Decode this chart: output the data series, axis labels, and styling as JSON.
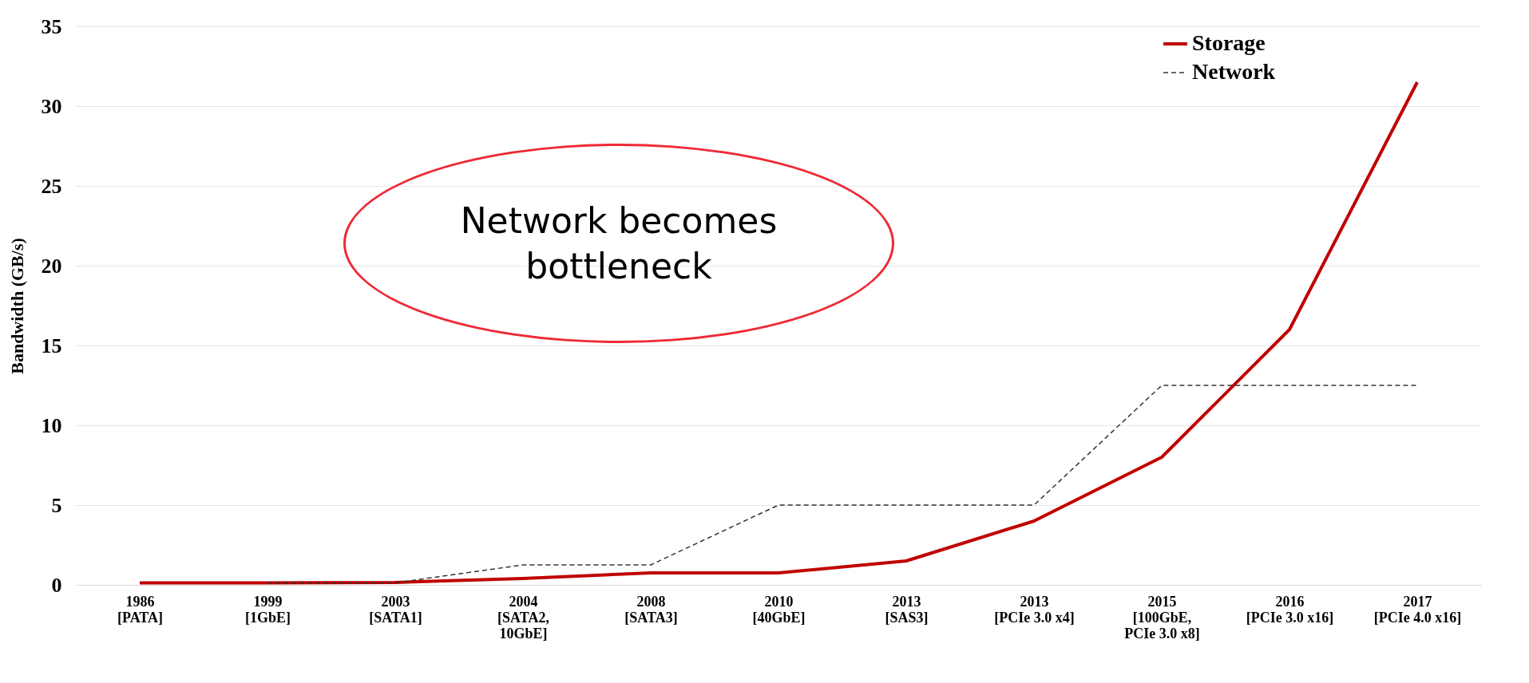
{
  "chart_data": {
    "type": "line",
    "ylabel": "Bandwidth (GB/s)",
    "categories": [
      "1986\n[PATA]",
      "1999\n[1GbE]",
      "2003\n[SATA1]",
      "2004\n[SATA2,\n10GbE]",
      "2008\n[SATA3]",
      "2010\n[40GbE]",
      "2013\n[SAS3]",
      "2013\n[PCIe 3.0 x4]",
      "2015\n[100GbE,\nPCIe 3.0 x8]",
      "2016\n[PCIe 3.0 x16]",
      "2017\n[PCIe 4.0 x16]"
    ],
    "series": [
      {
        "name": "Storage",
        "color": "#c00000",
        "line_style": "solid",
        "values": [
          0.13,
          0.13,
          0.15,
          0.4,
          0.75,
          0.75,
          1.5,
          4,
          8,
          16,
          31.5
        ]
      },
      {
        "name": "Network",
        "color": "#333333",
        "line_style": "dashed",
        "values": [
          null,
          0.13,
          0.13,
          1.25,
          1.25,
          5,
          5,
          5,
          12.5,
          12.5,
          12.5
        ]
      }
    ],
    "ylim": [
      0,
      35
    ],
    "yticks": [
      0,
      5,
      10,
      15,
      20,
      25,
      30,
      35
    ],
    "grid": "y",
    "legend": "top right",
    "marker": "none",
    "annotations": [
      "Network becomes bottleneck"
    ]
  }
}
